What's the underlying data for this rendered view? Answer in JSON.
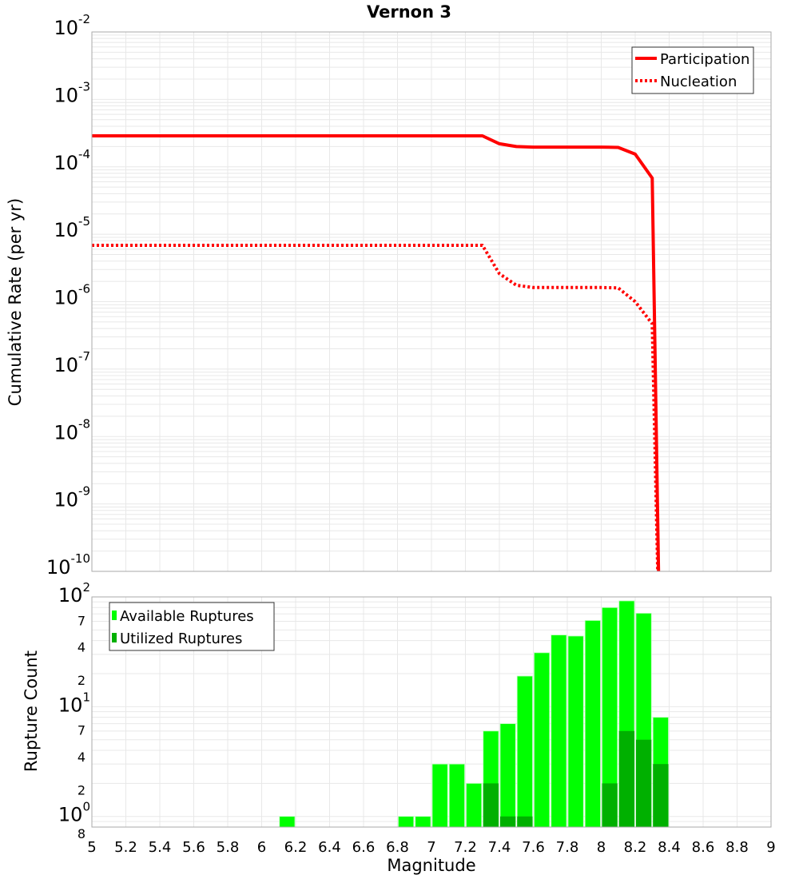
{
  "title": "Vernon 3",
  "colors": {
    "participation": "#ff0000",
    "nucleation": "#ff0000",
    "available": "#00ff00",
    "utilized": "#00b000",
    "grid": "#e8e8e8",
    "frame": "#aaaaaa"
  },
  "chart_data": [
    {
      "type": "line",
      "title": "Vernon 3",
      "xlabel": "",
      "ylabel": "Cumulative Rate (per yr)",
      "xlim": [
        5,
        9
      ],
      "ylim": [
        1e-10,
        0.01
      ],
      "yscale": "log",
      "grid": true,
      "legend": "top-right",
      "ytick_labels": [
        {
          "base": "10",
          "exp": "-2",
          "v": 0.01
        },
        {
          "base": "10",
          "exp": "-3",
          "v": 0.001
        },
        {
          "base": "10",
          "exp": "-4",
          "v": 0.0001
        },
        {
          "base": "10",
          "exp": "-5",
          "v": 1e-05
        },
        {
          "base": "10",
          "exp": "-6",
          "v": 1e-06
        },
        {
          "base": "10",
          "exp": "-7",
          "v": 1e-07
        },
        {
          "base": "10",
          "exp": "-8",
          "v": 1e-08
        },
        {
          "base": "10",
          "exp": "-9",
          "v": 1e-09
        },
        {
          "base": "10",
          "exp": "-10",
          "v": 1e-10
        }
      ],
      "series": [
        {
          "name": "Participation",
          "style": "solid",
          "x": [
            5.0,
            7.3,
            7.4,
            7.5,
            7.6,
            7.7,
            7.8,
            7.9,
            8.0,
            8.1,
            8.2,
            8.3,
            8.35
          ],
          "y": [
            0.000288,
            0.000288,
            0.00022,
            0.0002,
            0.000196,
            0.000196,
            0.000196,
            0.000196,
            0.000196,
            0.000194,
            0.000154,
            6.8e-05,
            1e-12
          ]
        },
        {
          "name": "Nucleation",
          "style": "dotted",
          "x": [
            5.0,
            7.3,
            7.4,
            7.5,
            7.6,
            7.7,
            7.8,
            7.9,
            8.0,
            8.1,
            8.2,
            8.3,
            8.35
          ],
          "y": [
            6.85e-06,
            6.85e-06,
            2.6e-06,
            1.75e-06,
            1.62e-06,
            1.62e-06,
            1.62e-06,
            1.62e-06,
            1.62e-06,
            1.6e-06,
            1e-06,
            4.7e-07,
            1e-12
          ]
        }
      ]
    },
    {
      "type": "bar",
      "xlabel": "Magnitude",
      "ylabel": "Rupture Count",
      "xlim": [
        5,
        9
      ],
      "ylim": [
        0.8,
        100
      ],
      "yscale": "log",
      "grid": true,
      "legend": "top-left",
      "bin_width": 0.1,
      "xtick_labels": [
        "5",
        "5.2",
        "5.4",
        "5.6",
        "5.8",
        "6",
        "6.2",
        "6.4",
        "6.6",
        "6.8",
        "7",
        "7.2",
        "7.4",
        "7.6",
        "7.8",
        "8",
        "8.2",
        "8.4",
        "8.6",
        "8.8",
        "9"
      ],
      "ytick_labels": [
        {
          "base": "10",
          "exp": "2",
          "v": 100
        },
        {
          "label": "7",
          "v": 70
        },
        {
          "label": "4",
          "v": 40
        },
        {
          "label": "2",
          "v": 20
        },
        {
          "base": "10",
          "exp": "1",
          "v": 10
        },
        {
          "label": "7",
          "v": 7
        },
        {
          "label": "4",
          "v": 4
        },
        {
          "label": "2",
          "v": 2
        },
        {
          "base": "10",
          "exp": "0",
          "v": 1
        },
        {
          "label": "8",
          "v": 0.8
        }
      ],
      "series": [
        {
          "name": "Available Ruptures",
          "bins": [
            6.1,
            6.8,
            6.9,
            7.0,
            7.1,
            7.2,
            7.3,
            7.4,
            7.5,
            7.6,
            7.7,
            7.8,
            7.9,
            8.0,
            8.1,
            8.2,
            8.3
          ],
          "values": [
            1,
            1,
            1,
            3,
            3,
            2,
            6,
            7,
            19,
            31,
            45,
            44,
            61,
            80,
            92,
            71,
            8
          ]
        },
        {
          "name": "Utilized Ruptures",
          "bins": [
            7.3,
            7.4,
            7.5,
            8.0,
            8.1,
            8.2,
            8.3
          ],
          "values": [
            2,
            1,
            1,
            2,
            6,
            5,
            3
          ]
        }
      ]
    }
  ]
}
